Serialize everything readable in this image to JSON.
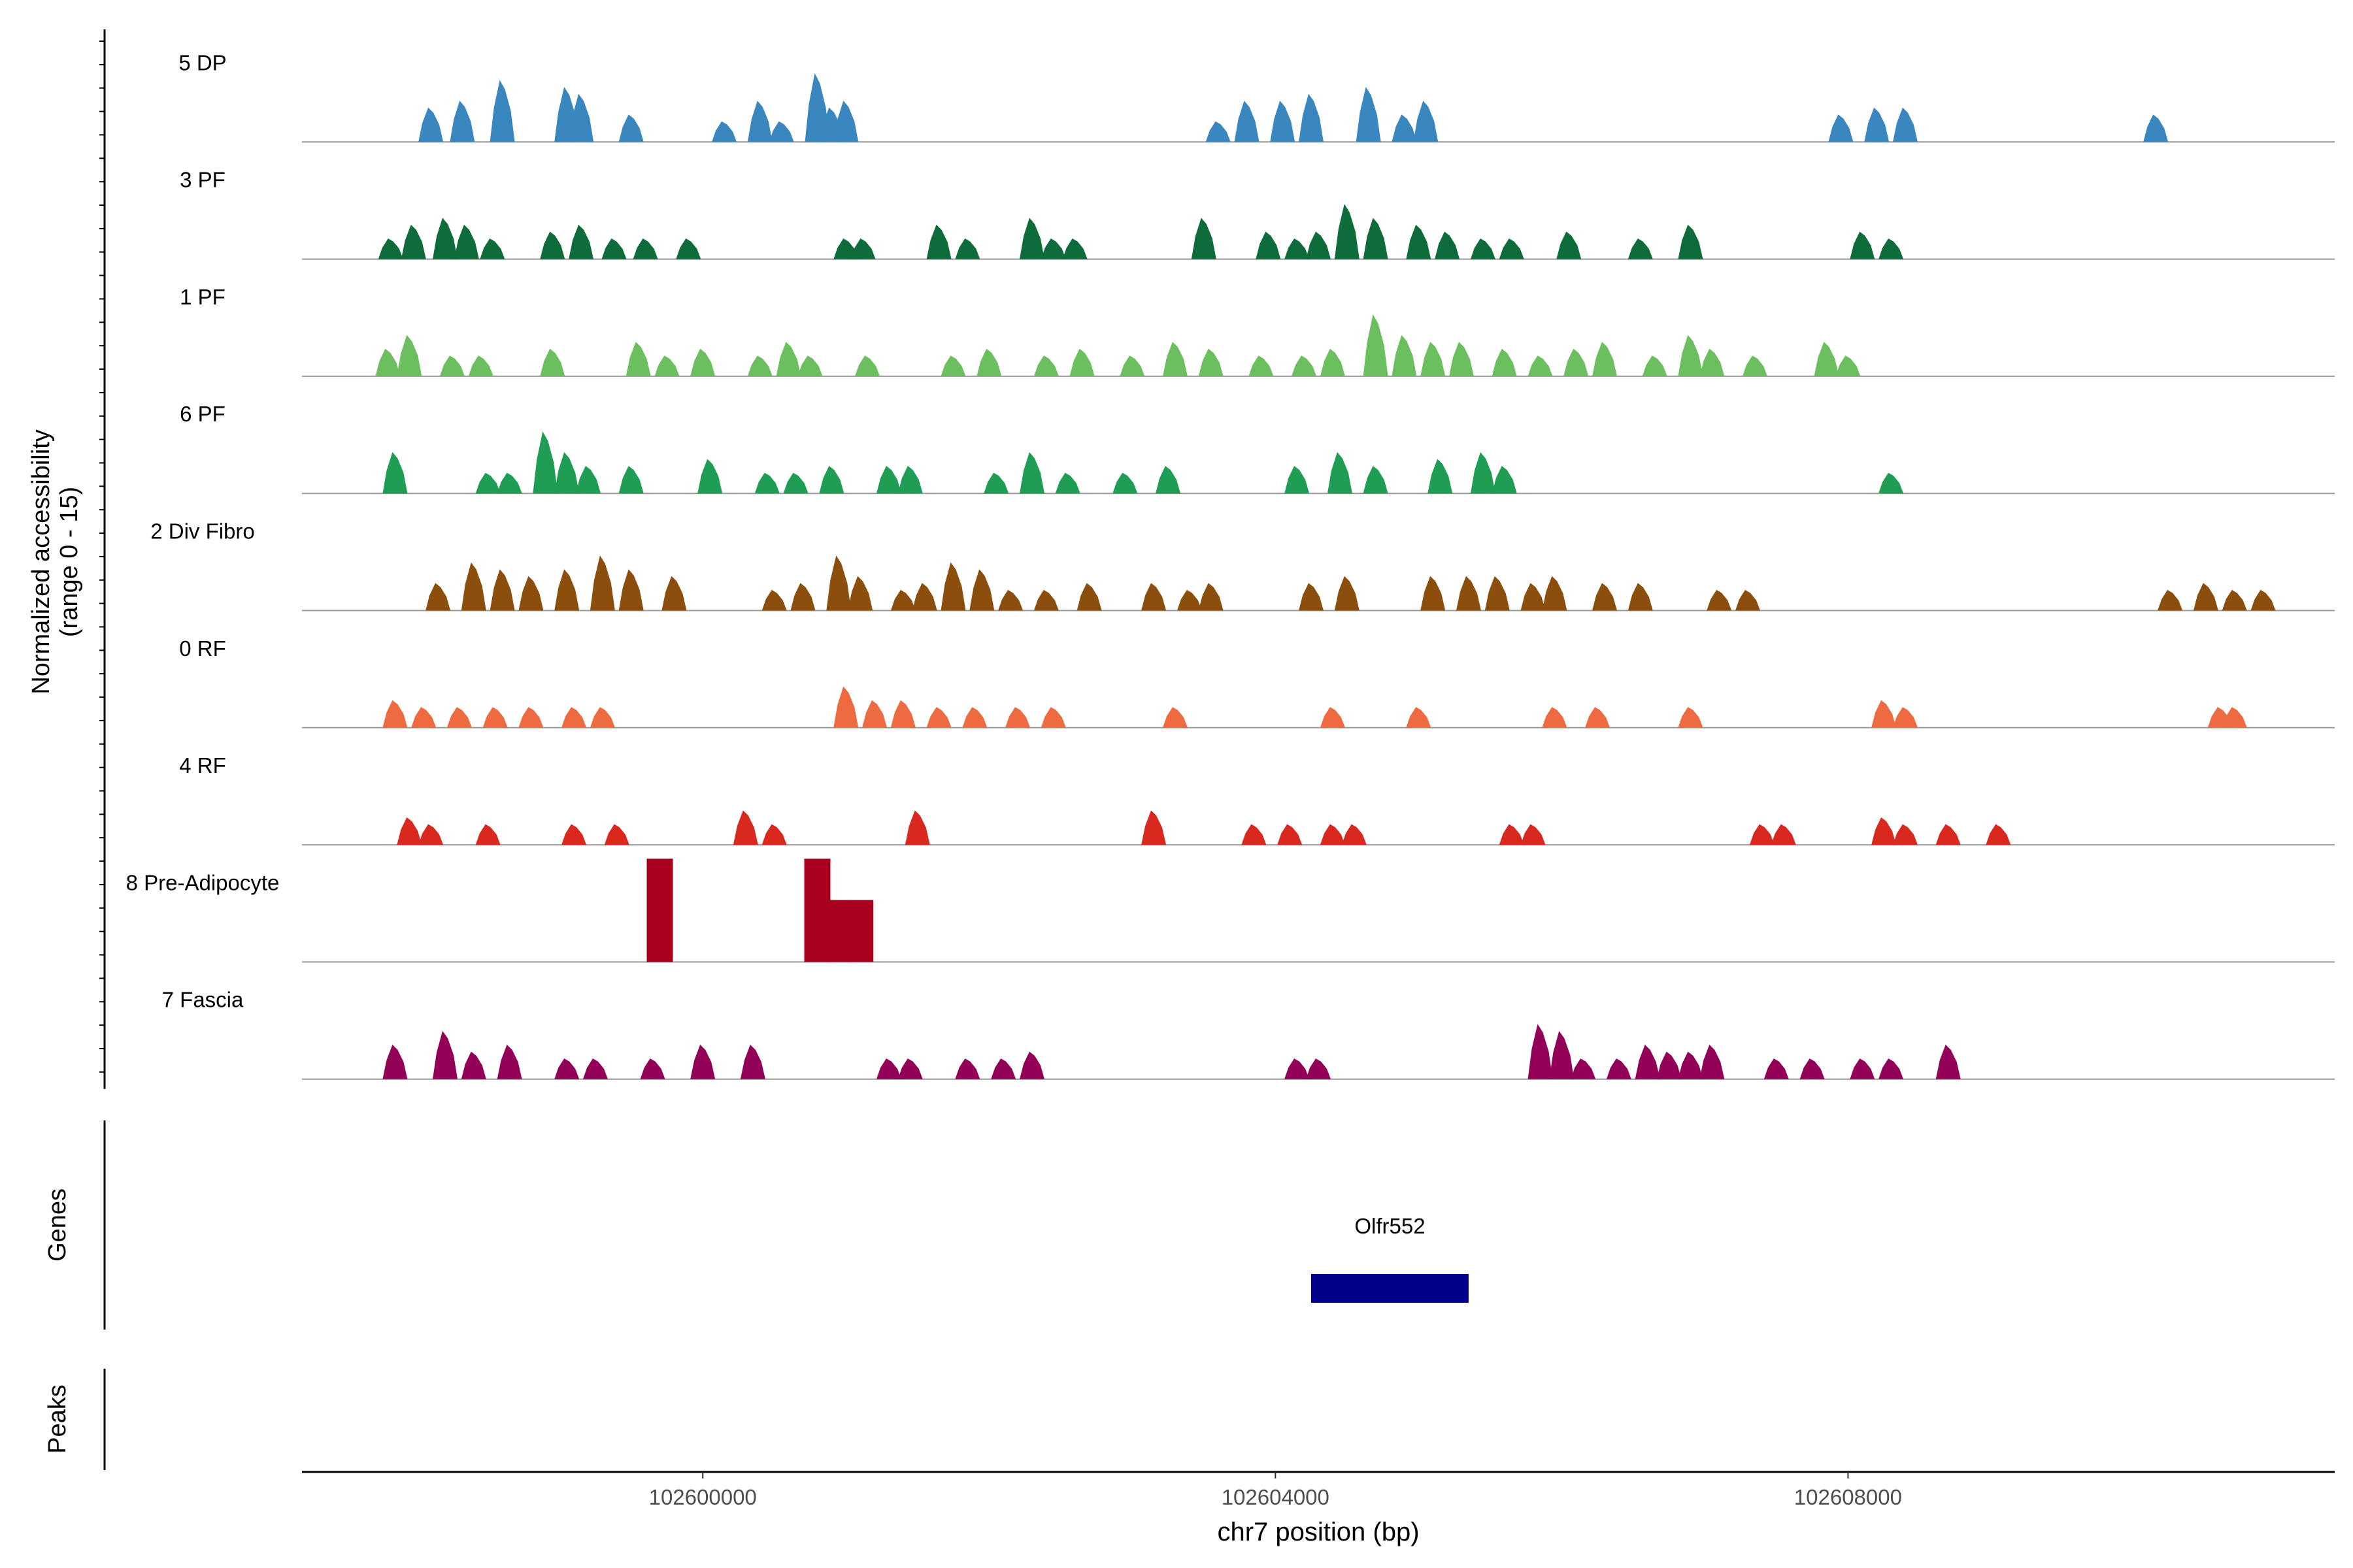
{
  "chart_data": {
    "type": "area",
    "y_axis": {
      "label_line1": "Normalized accessibility",
      "label_line2": "(range 0 - 15)",
      "range": [
        0,
        15
      ]
    },
    "x_axis": {
      "label": "chr7 position (bp)",
      "range": [
        102597200,
        102611400
      ],
      "ticks": [
        102600000,
        102604000,
        102608000
      ],
      "tick_labels": [
        "102600000",
        "102604000",
        "102608000"
      ]
    },
    "tracks": [
      {
        "name": "5 DP",
        "color": "#3a87c0",
        "peaks": [
          [
            102598100,
            5
          ],
          [
            102598320,
            6
          ],
          [
            102598600,
            9
          ],
          [
            102599050,
            8
          ],
          [
            102599150,
            7
          ],
          [
            102599500,
            4
          ],
          [
            102600150,
            3
          ],
          [
            102600400,
            6
          ],
          [
            102600550,
            3
          ],
          [
            102600800,
            10
          ],
          [
            102600900,
            5
          ],
          [
            102601000,
            6
          ],
          [
            102603600,
            3
          ],
          [
            102603800,
            6
          ],
          [
            102604050,
            6
          ],
          [
            102604250,
            7
          ],
          [
            102604650,
            8
          ],
          [
            102604900,
            4
          ],
          [
            102605050,
            6
          ],
          [
            102607950,
            4
          ],
          [
            102608200,
            5
          ],
          [
            102608400,
            5
          ],
          [
            102612000,
            0
          ],
          [
            102610150,
            4
          ]
        ]
      },
      {
        "name": "3 PF",
        "color": "#0e6b3a",
        "peaks": [
          [
            102597820,
            3
          ],
          [
            102597980,
            5
          ],
          [
            102598200,
            6
          ],
          [
            102598350,
            5
          ],
          [
            102598530,
            3
          ],
          [
            102598950,
            4
          ],
          [
            102599150,
            5
          ],
          [
            102599380,
            3
          ],
          [
            102599600,
            3
          ],
          [
            102599900,
            3
          ],
          [
            102601000,
            3
          ],
          [
            102601120,
            3
          ],
          [
            102601650,
            5
          ],
          [
            102601850,
            3
          ],
          [
            102602300,
            6
          ],
          [
            102602450,
            3
          ],
          [
            102602600,
            3
          ],
          [
            102603500,
            6
          ],
          [
            102603950,
            4
          ],
          [
            102604150,
            3
          ],
          [
            102604300,
            4
          ],
          [
            102604500,
            8
          ],
          [
            102604700,
            6
          ],
          [
            102605000,
            5
          ],
          [
            102605200,
            4
          ],
          [
            102605450,
            3
          ],
          [
            102605650,
            3
          ],
          [
            102606050,
            4
          ],
          [
            102606550,
            3
          ],
          [
            102606900,
            5
          ],
          [
            102608100,
            4
          ],
          [
            102608300,
            3
          ]
        ]
      },
      {
        "name": "1 PF",
        "color": "#6cbf5e",
        "peaks": [
          [
            102597800,
            4
          ],
          [
            102597950,
            6
          ],
          [
            102598250,
            3
          ],
          [
            102598450,
            3
          ],
          [
            102598950,
            4
          ],
          [
            102599550,
            5
          ],
          [
            102599750,
            3
          ],
          [
            102600000,
            4
          ],
          [
            102600400,
            3
          ],
          [
            102600600,
            5
          ],
          [
            102600750,
            3
          ],
          [
            102601150,
            3
          ],
          [
            102601750,
            3
          ],
          [
            102602000,
            4
          ],
          [
            102602400,
            3
          ],
          [
            102602650,
            4
          ],
          [
            102603000,
            3
          ],
          [
            102603300,
            5
          ],
          [
            102603550,
            4
          ],
          [
            102603900,
            3
          ],
          [
            102604200,
            3
          ],
          [
            102604400,
            4
          ],
          [
            102604700,
            9
          ],
          [
            102604900,
            6
          ],
          [
            102605100,
            5
          ],
          [
            102605300,
            5
          ],
          [
            102605600,
            4
          ],
          [
            102605850,
            3
          ],
          [
            102606100,
            4
          ],
          [
            102606300,
            5
          ],
          [
            102606650,
            3
          ],
          [
            102606900,
            6
          ],
          [
            102607050,
            4
          ],
          [
            102607350,
            3
          ],
          [
            102607850,
            5
          ],
          [
            102608000,
            3
          ]
        ]
      },
      {
        "name": "6 PF",
        "color": "#1f9d55",
        "peaks": [
          [
            102597850,
            6
          ],
          [
            102598500,
            3
          ],
          [
            102598650,
            3
          ],
          [
            102598900,
            9
          ],
          [
            102599050,
            6
          ],
          [
            102599200,
            4
          ],
          [
            102599500,
            4
          ],
          [
            102600050,
            5
          ],
          [
            102600450,
            3
          ],
          [
            102600650,
            3
          ],
          [
            102600900,
            4
          ],
          [
            102601300,
            4
          ],
          [
            102601450,
            4
          ],
          [
            102602050,
            3
          ],
          [
            102602300,
            6
          ],
          [
            102602550,
            3
          ],
          [
            102602950,
            3
          ],
          [
            102603250,
            4
          ],
          [
            102604150,
            4
          ],
          [
            102604450,
            6
          ],
          [
            102604700,
            4
          ],
          [
            102605150,
            5
          ],
          [
            102605450,
            6
          ],
          [
            102605600,
            4
          ],
          [
            102608300,
            3
          ]
        ]
      },
      {
        "name": "2 Div Fibro",
        "color": "#8b4e0c",
        "peaks": [
          [
            102598150,
            4
          ],
          [
            102598400,
            7
          ],
          [
            102598600,
            6
          ],
          [
            102598800,
            5
          ],
          [
            102599050,
            6
          ],
          [
            102599300,
            8
          ],
          [
            102599500,
            6
          ],
          [
            102599800,
            5
          ],
          [
            102600500,
            3
          ],
          [
            102600700,
            4
          ],
          [
            102600950,
            8
          ],
          [
            102601100,
            5
          ],
          [
            102601400,
            3
          ],
          [
            102601550,
            4
          ],
          [
            102601750,
            7
          ],
          [
            102601950,
            6
          ],
          [
            102602150,
            3
          ],
          [
            102602400,
            3
          ],
          [
            102602700,
            4
          ],
          [
            102603150,
            4
          ],
          [
            102603400,
            3
          ],
          [
            102603550,
            4
          ],
          [
            102604250,
            4
          ],
          [
            102604500,
            5
          ],
          [
            102605100,
            5
          ],
          [
            102605350,
            5
          ],
          [
            102605550,
            5
          ],
          [
            102605800,
            4
          ],
          [
            102605950,
            5
          ],
          [
            102606300,
            4
          ],
          [
            102606550,
            4
          ],
          [
            102607100,
            3
          ],
          [
            102607300,
            3
          ],
          [
            102610250,
            3
          ],
          [
            102610500,
            4
          ],
          [
            102610700,
            3
          ],
          [
            102610900,
            3
          ]
        ]
      },
      {
        "name": "0 RF",
        "color": "#ee6a40",
        "peaks": [
          [
            102597850,
            4
          ],
          [
            102598050,
            3
          ],
          [
            102598300,
            3
          ],
          [
            102598550,
            3
          ],
          [
            102598800,
            3
          ],
          [
            102599100,
            3
          ],
          [
            102599300,
            3
          ],
          [
            102601000,
            6
          ],
          [
            102601200,
            4
          ],
          [
            102601400,
            4
          ],
          [
            102601650,
            3
          ],
          [
            102601900,
            3
          ],
          [
            102602200,
            3
          ],
          [
            102602450,
            3
          ],
          [
            102603300,
            3
          ],
          [
            102604400,
            3
          ],
          [
            102605000,
            3
          ],
          [
            102605950,
            3
          ],
          [
            102606250,
            3
          ],
          [
            102606900,
            3
          ],
          [
            102608250,
            4
          ],
          [
            102608400,
            3
          ],
          [
            102610600,
            3
          ],
          [
            102610700,
            3
          ]
        ]
      },
      {
        "name": "4 RF",
        "color": "#d9291f",
        "peaks": [
          [
            102597950,
            4
          ],
          [
            102598100,
            3
          ],
          [
            102598500,
            3
          ],
          [
            102599100,
            3
          ],
          [
            102599400,
            3
          ],
          [
            102600300,
            5
          ],
          [
            102600500,
            3
          ],
          [
            102601500,
            5
          ],
          [
            102603150,
            5
          ],
          [
            102603850,
            3
          ],
          [
            102604100,
            3
          ],
          [
            102604400,
            3
          ],
          [
            102604550,
            3
          ],
          [
            102605650,
            3
          ],
          [
            102605800,
            3
          ],
          [
            102607400,
            3
          ],
          [
            102607550,
            3
          ],
          [
            102608250,
            4
          ],
          [
            102608400,
            3
          ],
          [
            102608700,
            3
          ],
          [
            102609050,
            3
          ]
        ]
      },
      {
        "name": "8 Pre-Adipocyte",
        "color": "#a8001c",
        "peaks": [
          [
            102599700,
            15
          ],
          [
            102600800,
            15
          ],
          [
            102600950,
            9
          ],
          [
            102601100,
            9
          ]
        ]
      },
      {
        "name": "7 Fascia",
        "color": "#920057",
        "peaks": [
          [
            102597850,
            5
          ],
          [
            102598200,
            7
          ],
          [
            102598400,
            4
          ],
          [
            102598650,
            5
          ],
          [
            102599050,
            3
          ],
          [
            102599250,
            3
          ],
          [
            102599650,
            3
          ],
          [
            102600000,
            5
          ],
          [
            102600350,
            5
          ],
          [
            102601300,
            3
          ],
          [
            102601450,
            3
          ],
          [
            102601850,
            3
          ],
          [
            102602100,
            3
          ],
          [
            102602300,
            4
          ],
          [
            102604150,
            3
          ],
          [
            102604300,
            3
          ],
          [
            102605850,
            8
          ],
          [
            102606000,
            7
          ],
          [
            102606150,
            3
          ],
          [
            102606400,
            3
          ],
          [
            102606600,
            5
          ],
          [
            102606750,
            4
          ],
          [
            102606900,
            4
          ],
          [
            102607050,
            5
          ],
          [
            102607500,
            3
          ],
          [
            102607750,
            3
          ],
          [
            102608100,
            3
          ],
          [
            102608300,
            3
          ],
          [
            102608700,
            5
          ]
        ]
      }
    ],
    "genes": {
      "label": "Genes",
      "items": [
        {
          "name": "Olfr552",
          "start": 102604250,
          "end": 102605350,
          "color": "#00008b"
        }
      ]
    },
    "peaks_track": {
      "label": "Peaks"
    }
  }
}
